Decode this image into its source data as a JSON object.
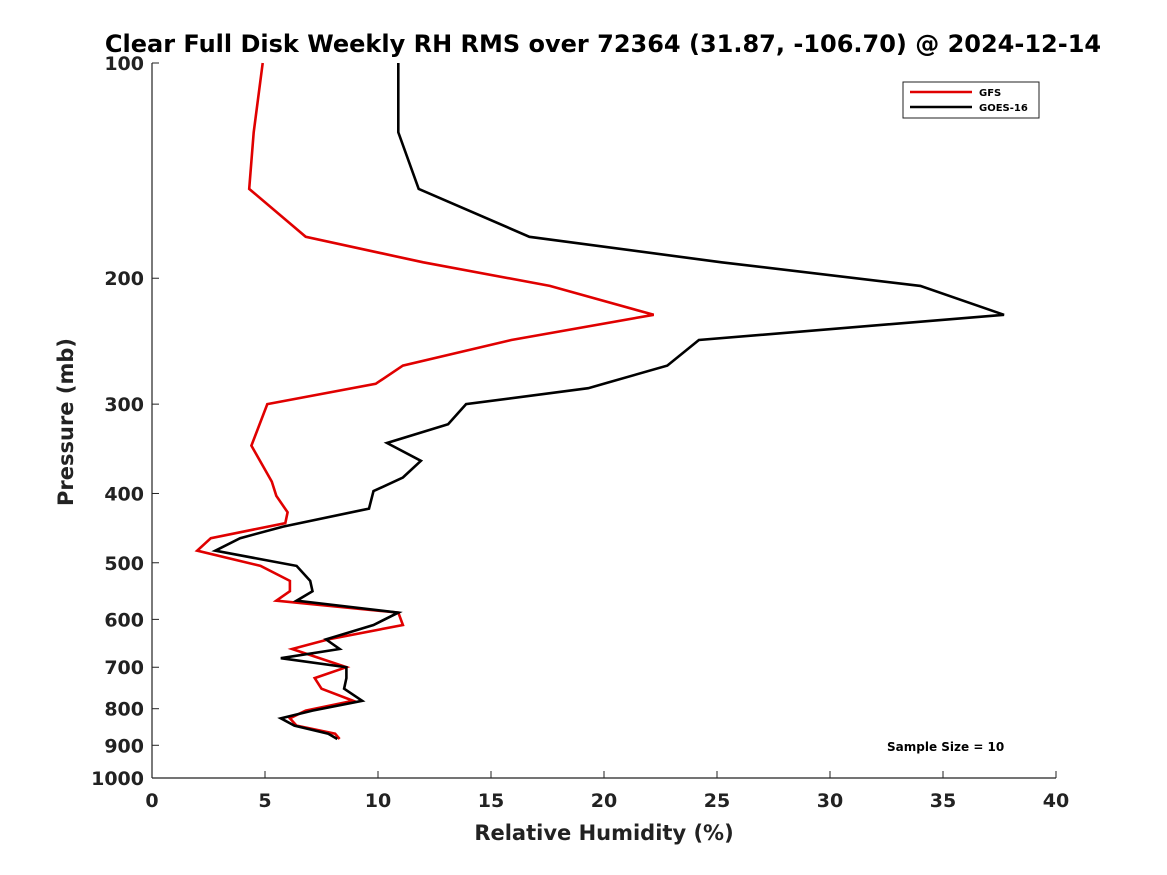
{
  "chart_data": {
    "type": "line",
    "title": "Clear Full Disk Weekly RH RMS over 72364 (31.87, -106.70) @ 2024-12-14",
    "xlabel": "Relative Humidity (%)",
    "ylabel": "Pressure (mb)",
    "xlim": [
      0,
      40
    ],
    "ylim": [
      100,
      1000
    ],
    "y_scale": "log",
    "y_reversed": true,
    "xticks": [
      0,
      5,
      10,
      15,
      20,
      25,
      30,
      35,
      40
    ],
    "yticks": [
      100,
      200,
      300,
      400,
      500,
      600,
      700,
      800,
      900,
      1000
    ],
    "legend_position": "top-right",
    "annotation": "Sample Size = 10",
    "series": [
      {
        "name": "GFS",
        "color": "#e00000",
        "points": [
          [
            4.9,
            100
          ],
          [
            4.5,
            125
          ],
          [
            4.3,
            150
          ],
          [
            6.8,
            175
          ],
          [
            12.0,
            190
          ],
          [
            17.6,
            205
          ],
          [
            22.2,
            225
          ],
          [
            15.9,
            244
          ],
          [
            11.1,
            265
          ],
          [
            9.9,
            281
          ],
          [
            5.1,
            300
          ],
          [
            4.4,
            343
          ],
          [
            5.3,
            385
          ],
          [
            5.5,
            403
          ],
          [
            6.0,
            425
          ],
          [
            5.9,
            440
          ],
          [
            2.6,
            462
          ],
          [
            2.0,
            481
          ],
          [
            4.8,
            505
          ],
          [
            6.1,
            530
          ],
          [
            6.1,
            548
          ],
          [
            5.5,
            565
          ],
          [
            10.9,
            587
          ],
          [
            11.1,
            611
          ],
          [
            7.8,
            640
          ],
          [
            6.2,
            660
          ],
          [
            8.6,
            700
          ],
          [
            7.2,
            725
          ],
          [
            7.5,
            750
          ],
          [
            8.9,
            780
          ],
          [
            6.8,
            805
          ],
          [
            6.1,
            825
          ],
          [
            6.4,
            845
          ],
          [
            8.1,
            867
          ],
          [
            8.3,
            882
          ]
        ]
      },
      {
        "name": "GOES-16",
        "color": "#000000",
        "points": [
          [
            10.9,
            100
          ],
          [
            10.9,
            125
          ],
          [
            11.8,
            150
          ],
          [
            16.7,
            175
          ],
          [
            25.2,
            190
          ],
          [
            34.0,
            205
          ],
          [
            37.7,
            225
          ],
          [
            24.2,
            244
          ],
          [
            22.8,
            265
          ],
          [
            19.3,
            285
          ],
          [
            13.9,
            300
          ],
          [
            13.1,
            320
          ],
          [
            10.4,
            340
          ],
          [
            11.9,
            360
          ],
          [
            11.1,
            380
          ],
          [
            9.8,
            397
          ],
          [
            9.6,
            420
          ],
          [
            5.8,
            445
          ],
          [
            3.9,
            462
          ],
          [
            2.8,
            481
          ],
          [
            6.4,
            505
          ],
          [
            7.0,
            530
          ],
          [
            7.1,
            548
          ],
          [
            6.4,
            565
          ],
          [
            10.9,
            587
          ],
          [
            9.8,
            611
          ],
          [
            7.7,
            640
          ],
          [
            8.3,
            660
          ],
          [
            5.7,
            680
          ],
          [
            8.6,
            700
          ],
          [
            8.6,
            725
          ],
          [
            8.5,
            750
          ],
          [
            9.3,
            780
          ],
          [
            7.1,
            805
          ],
          [
            5.7,
            825
          ],
          [
            6.3,
            845
          ],
          [
            7.8,
            867
          ],
          [
            8.2,
            882
          ]
        ]
      }
    ]
  }
}
